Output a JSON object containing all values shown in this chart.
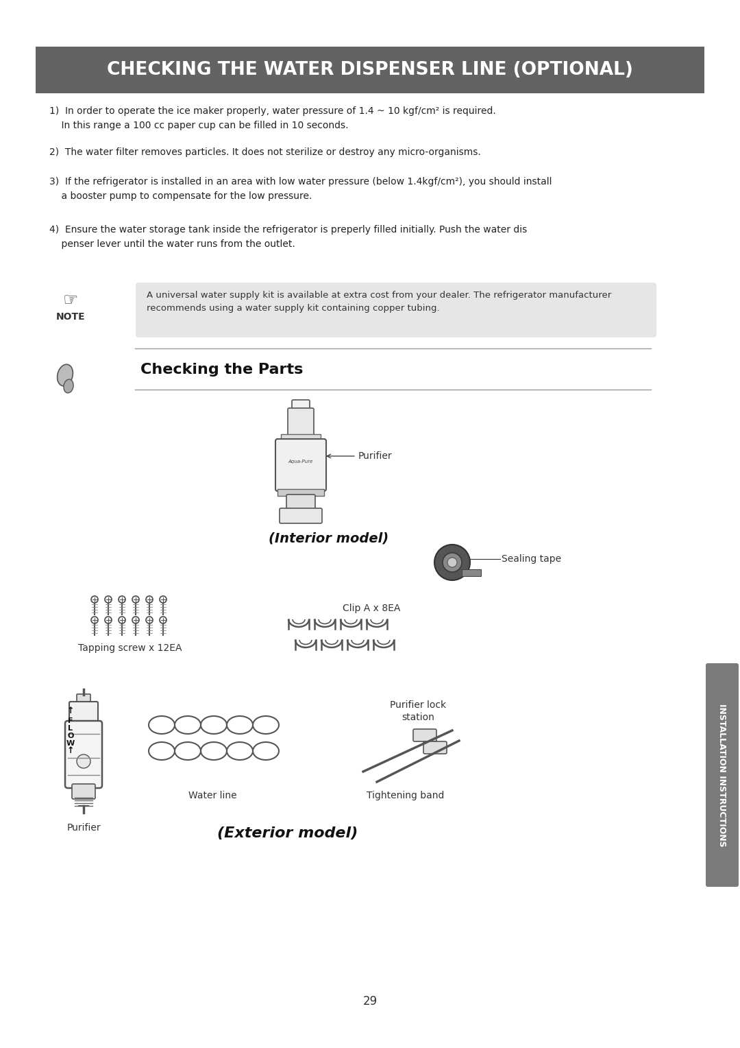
{
  "bg_color": "#ffffff",
  "page_number": "29",
  "header_bg": "#636363",
  "header_text": "CHECKING THE WATER DISPENSER LINE (OPTIONAL)",
  "header_text_color": "#ffffff",
  "body_items": [
    "1)  In order to operate the ice maker properly, water pressure of 1.4 ~ 10 kgf/cm² is required.\n    In this range a 100 cc paper cup can be filled in 10 seconds.",
    "2)  The water filter removes particles. It does not sterilize or destroy any micro-organisms.",
    "3)  If the refrigerator is installed in an area with low water pressure (below 1.4kgf/cm²), you should install\n    a booster pump to compensate for the low pressure.",
    "4)  Ensure the water storage tank inside the refrigerator is preperly filled initially. Push the water dis\n    penser lever until the water runs from the outlet."
  ],
  "note_bg": "#e6e6e6",
  "note_text": "A universal water supply kit is available at extra cost from your dealer. The refrigerator manufacturer\nrecommends using a water supply kit containing copper tubing.",
  "note_label": "NOTE",
  "section_title": "Checking the Parts",
  "interior_label": "(Interior model)",
  "exterior_label": "(Exterior model)",
  "parts_labels": {
    "purifier_interior": "Purifier",
    "sealing_tape": "Sealing tape",
    "tapping_screw": "Tapping screw x 12EA",
    "clip_a": "Clip A x 8EA",
    "water_line": "Water line",
    "purifier_exterior": "Purifier",
    "purifier_lock": "Purifier lock\nstation",
    "tightening_band": "Tightening band"
  },
  "sidebar_text": "INSTALLATION INSTRUCTIONS",
  "sidebar_bg": "#7a7a7a"
}
